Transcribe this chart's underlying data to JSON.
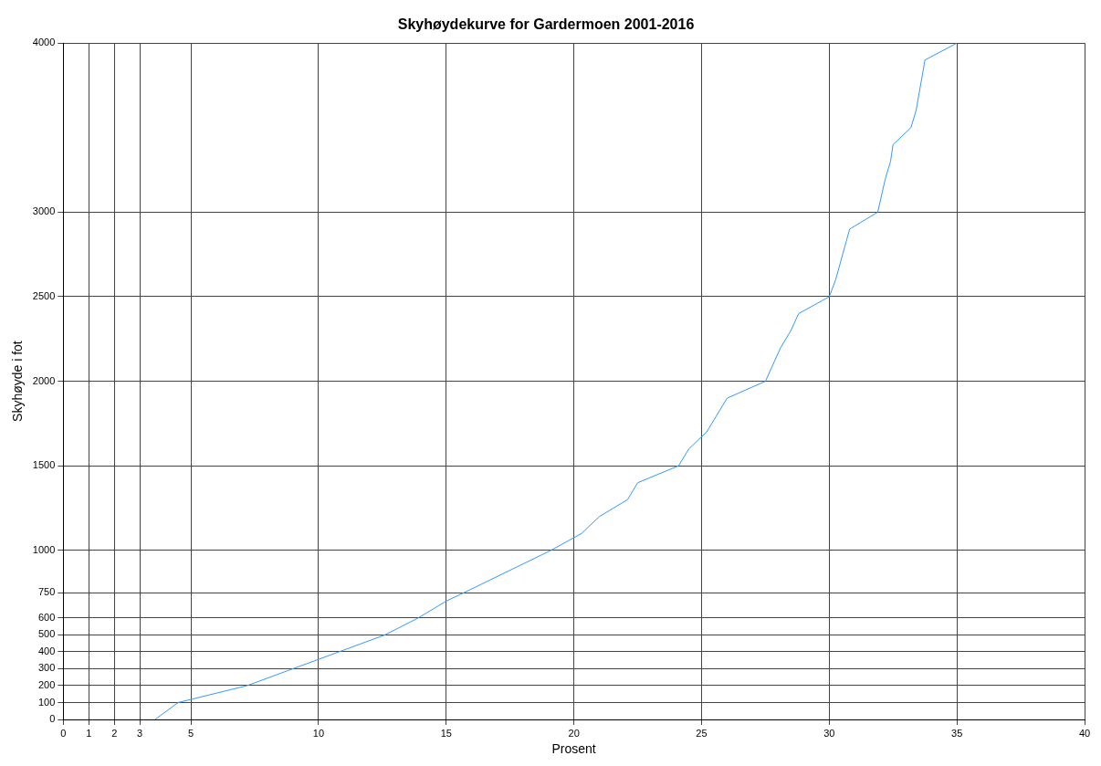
{
  "chart_data": {
    "type": "line",
    "title": "Skyhøydekurve for Gardermoen 2001-2016",
    "xlabel": "Prosent",
    "ylabel": "Skyhøyde i fot",
    "x": [
      3.6,
      4.5,
      7.2,
      12.6,
      13.9,
      15,
      15.7,
      19.1,
      20.3,
      21,
      22.1,
      22.5,
      24.1,
      24.5,
      25.2,
      26,
      27.5,
      27.8,
      28.1,
      28.5,
      28.8,
      30,
      30.25,
      30.8,
      31.9,
      32.2,
      32.4,
      32.5,
      33.2,
      33.4,
      33.75,
      35
    ],
    "series": [
      {
        "color": "#3399ff",
        "values": [
          0,
          100,
          200,
          500,
          600,
          700,
          750,
          1000,
          1100,
          1200,
          1300,
          1400,
          1500,
          1600,
          1700,
          1900,
          2000,
          2100,
          2200,
          2300,
          2400,
          2500,
          2600,
          2900,
          3000,
          3200,
          3300,
          3400,
          3500,
          3600,
          3900,
          4000
        ]
      }
    ],
    "xlim": [
      0,
      40
    ],
    "xticks": [
      0,
      1,
      2,
      3,
      5,
      10,
      15,
      20,
      25,
      30,
      35,
      40
    ],
    "ylim": [
      0,
      4000
    ],
    "yticks": [
      0,
      100,
      200,
      300,
      400,
      500,
      600,
      750,
      1000,
      1500,
      2000,
      2500,
      3000,
      4000
    ],
    "grid": true,
    "legend": false,
    "marker": "none",
    "line_style": "solid"
  }
}
